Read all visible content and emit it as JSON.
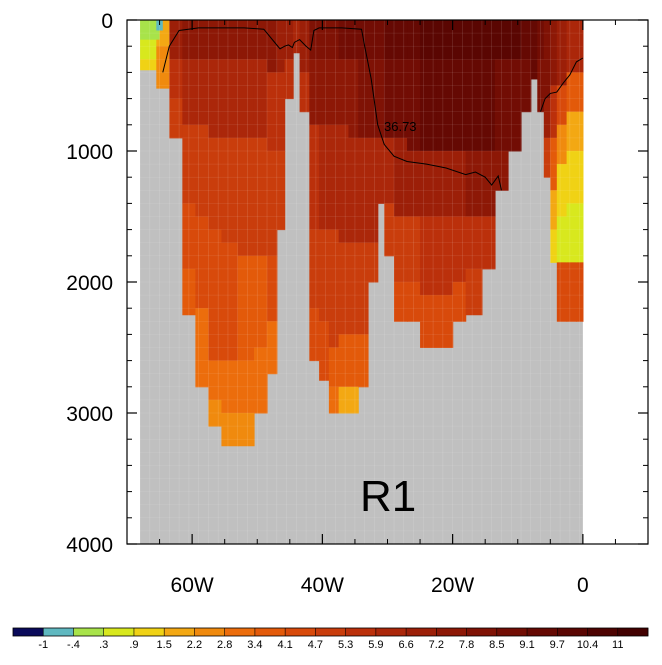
{
  "chart_data": {
    "type": "heatmap",
    "panel_label": "R1",
    "contour_label": "36.73",
    "x_ticks": [
      {
        "value": -60,
        "label": "60W"
      },
      {
        "value": -40,
        "label": "40W"
      },
      {
        "value": -20,
        "label": "20W"
      },
      {
        "value": 0,
        "label": "0"
      }
    ],
    "xlim": [
      -70,
      10
    ],
    "y_ticks": [
      {
        "value": 0,
        "label": "0"
      },
      {
        "value": 1000,
        "label": "1000"
      },
      {
        "value": 2000,
        "label": "2000"
      },
      {
        "value": 3000,
        "label": "3000"
      },
      {
        "value": 4000,
        "label": "4000"
      }
    ],
    "ylim": [
      0,
      4000
    ],
    "y_reversed": true,
    "mask_color": "#c0c0c0",
    "colorbar": {
      "levels": [
        "-1",
        "-.4",
        ".3",
        ".9",
        "1.5",
        "2.2",
        "2.8",
        "3.4",
        "4.1",
        "4.7",
        "5.3",
        "5.9",
        "6.6",
        "7.2",
        "7.8",
        "8.5",
        "9.1",
        "9.7",
        "10.4",
        "11"
      ],
      "colors": [
        "#0a0a5a",
        "#5fb8c0",
        "#a8e34a",
        "#d8e81e",
        "#f0d215",
        "#f3a813",
        "#f08a0e",
        "#ec6d0c",
        "#e35a0a",
        "#d84a0b",
        "#c93d0c",
        "#bb300b",
        "#ab270a",
        "#9c1f08",
        "#8d1806",
        "#7f1205",
        "#720d04",
        "#650903",
        "#5a0602",
        "#4d0301",
        "#420000"
      ]
    },
    "depth_field_note": "",
    "contour_path": [
      [
        -64.5,
        400
      ],
      [
        -63.5,
        200
      ],
      [
        -62,
        80
      ],
      [
        -59,
        60
      ],
      [
        -56,
        60
      ],
      [
        -52,
        60
      ],
      [
        -49,
        70
      ],
      [
        -47.5,
        160
      ],
      [
        -46.5,
        220
      ],
      [
        -45.8,
        200
      ],
      [
        -45.2,
        190
      ],
      [
        -44.6,
        210
      ],
      [
        -44.3,
        170
      ],
      [
        -43.5,
        150
      ],
      [
        -42.5,
        200
      ],
      [
        -41.8,
        230
      ],
      [
        -41.3,
        80
      ],
      [
        -40.5,
        60
      ],
      [
        -37,
        60
      ],
      [
        -34,
        70
      ],
      [
        -33.5,
        200
      ],
      [
        -32.5,
        450
      ],
      [
        -31.5,
        800
      ],
      [
        -30.5,
        950
      ],
      [
        -29,
        1040
      ],
      [
        -27,
        1080
      ],
      [
        -24,
        1100
      ],
      [
        -21,
        1130
      ],
      [
        -18,
        1180
      ],
      [
        -16.5,
        1160
      ],
      [
        -15,
        1200
      ],
      [
        -14,
        1260
      ],
      [
        -13,
        1190
      ],
      [
        -12.5,
        1300
      ]
    ],
    "contour_path_2": [
      [
        -6.5,
        700
      ],
      [
        -5.8,
        600
      ],
      [
        -5,
        560
      ],
      [
        -4,
        550
      ],
      [
        -3,
        480
      ],
      [
        -2,
        420
      ],
      [
        -1,
        320
      ],
      [
        0,
        290
      ]
    ],
    "field": {
      "columns": [
        {
          "x0": -68,
          "x1": -65.5,
          "bottom": 380,
          "top_color": 3,
          "deep": [
            [
              150,
              3
            ],
            [
              300,
              4
            ]
          ]
        },
        {
          "x0": -65.5,
          "x1": -63.5,
          "bottom": 520,
          "top_color": 5,
          "deep": [
            [
              200,
              6
            ]
          ]
        },
        {
          "x0": -63.5,
          "x1": -61.5,
          "bottom": 900,
          "top_color": 13,
          "deep": [
            [
              300,
              11
            ],
            [
              600,
              10
            ]
          ]
        },
        {
          "x0": -61.5,
          "x1": -59.5,
          "bottom": 2250,
          "top_color": 14,
          "deep": [
            [
              300,
              12
            ],
            [
              800,
              10
            ],
            [
              1400,
              9
            ],
            [
              1900,
              8
            ]
          ]
        },
        {
          "x0": -59.5,
          "x1": -57.5,
          "bottom": 2800,
          "top_color": 14,
          "deep": [
            [
              300,
              12
            ],
            [
              800,
              10
            ],
            [
              1500,
              9
            ],
            [
              2200,
              7
            ]
          ]
        },
        {
          "x0": -57.5,
          "x1": -55.5,
          "bottom": 3100,
          "top_color": 14,
          "deep": [
            [
              300,
              12
            ],
            [
              900,
              10
            ],
            [
              1600,
              9
            ],
            [
              2600,
              7
            ],
            [
              2900,
              6
            ]
          ]
        },
        {
          "x0": -55.5,
          "x1": -53,
          "bottom": 3250,
          "top_color": 14,
          "deep": [
            [
              300,
              12
            ],
            [
              900,
              10
            ],
            [
              1700,
              9
            ],
            [
              2600,
              7
            ],
            [
              3000,
              6
            ]
          ]
        },
        {
          "x0": -53,
          "x1": -50.5,
          "bottom": 3250,
          "top_color": 14,
          "deep": [
            [
              300,
              12
            ],
            [
              900,
              10
            ],
            [
              1800,
              8
            ],
            [
              2600,
              7
            ],
            [
              3000,
              6
            ]
          ]
        },
        {
          "x0": -50.5,
          "x1": -48.5,
          "bottom": 3000,
          "top_color": 14,
          "deep": [
            [
              300,
              12
            ],
            [
              900,
              10
            ],
            [
              1800,
              8
            ],
            [
              2500,
              7
            ]
          ]
        },
        {
          "x0": -48.5,
          "x1": -47,
          "bottom": 2700,
          "top_color": 14,
          "deep": [
            [
              400,
              11
            ],
            [
              1000,
              10
            ],
            [
              1800,
              9
            ],
            [
              2300,
              7
            ]
          ]
        },
        {
          "x0": -47,
          "x1": -45.8,
          "bottom": 1600,
          "top_color": 13,
          "deep": [
            [
              400,
              11
            ],
            [
              1000,
              10
            ]
          ]
        },
        {
          "x0": -45.8,
          "x1": -44.5,
          "bottom": 600,
          "top_color": 13,
          "deep": [
            [
              300,
              11
            ]
          ]
        },
        {
          "x0": -44.5,
          "x1": -43.5,
          "bottom": 250,
          "top_color": 12,
          "deep": []
        },
        {
          "x0": -43.5,
          "x1": -42,
          "bottom": 700,
          "top_color": 13,
          "deep": [
            [
              400,
              11
            ]
          ]
        },
        {
          "x0": -42,
          "x1": -40.5,
          "bottom": 2600,
          "top_color": 15,
          "deep": [
            [
              300,
              14
            ],
            [
              800,
              11
            ],
            [
              1600,
              10
            ],
            [
              2200,
              9
            ]
          ]
        },
        {
          "x0": -40.5,
          "x1": -39,
          "bottom": 2750,
          "top_color": 15,
          "deep": [
            [
              300,
              14
            ],
            [
              800,
              12
            ],
            [
              1600,
              10
            ],
            [
              2300,
              9
            ]
          ]
        },
        {
          "x0": -39,
          "x1": -37.5,
          "bottom": 3000,
          "top_color": 15,
          "deep": [
            [
              300,
              14
            ],
            [
              800,
              12
            ],
            [
              1600,
              10
            ],
            [
              2500,
              8
            ],
            [
              2800,
              7
            ]
          ]
        },
        {
          "x0": -37.5,
          "x1": -36,
          "bottom": 3000,
          "top_color": 16,
          "deep": [
            [
              300,
              14
            ],
            [
              800,
              12
            ],
            [
              1700,
              10
            ],
            [
              2400,
              8
            ],
            [
              2800,
              5
            ]
          ]
        },
        {
          "x0": -36,
          "x1": -34.5,
          "bottom": 3000,
          "top_color": 16,
          "deep": [
            [
              300,
              14
            ],
            [
              900,
              12
            ],
            [
              1700,
              10
            ],
            [
              2400,
              8
            ],
            [
              2800,
              5
            ]
          ]
        },
        {
          "x0": -34.5,
          "x1": -33,
          "bottom": 2800,
          "top_color": 16,
          "deep": [
            [
              300,
              15
            ],
            [
              900,
              12
            ],
            [
              1700,
              10
            ],
            [
              2400,
              8
            ]
          ]
        },
        {
          "x0": -33,
          "x1": -31.5,
          "bottom": 2000,
          "top_color": 16,
          "deep": [
            [
              300,
              15
            ],
            [
              900,
              12
            ],
            [
              1700,
              10
            ]
          ]
        },
        {
          "x0": -31.5,
          "x1": -30.5,
          "bottom": 1400,
          "top_color": 16,
          "deep": [
            [
              300,
              15
            ],
            [
              900,
              12
            ]
          ]
        },
        {
          "x0": -30.5,
          "x1": -29,
          "bottom": 1800,
          "top_color": 17,
          "deep": [
            [
              300,
              16
            ],
            [
              900,
              12
            ],
            [
              1400,
              10
            ]
          ]
        },
        {
          "x0": -29,
          "x1": -27,
          "bottom": 2300,
          "top_color": 17,
          "deep": [
            [
              300,
              16
            ],
            [
              900,
              13
            ],
            [
              1500,
              10
            ],
            [
              2000,
              9
            ]
          ]
        },
        {
          "x0": -27,
          "x1": -25,
          "bottom": 2300,
          "top_color": 17,
          "deep": [
            [
              300,
              16
            ],
            [
              1000,
              13
            ],
            [
              1500,
              10
            ],
            [
              2000,
              9
            ]
          ]
        },
        {
          "x0": -25,
          "x1": -22.5,
          "bottom": 2500,
          "top_color": 18,
          "deep": [
            [
              300,
              17
            ],
            [
              1000,
              13
            ],
            [
              1500,
              11
            ],
            [
              2100,
              9
            ]
          ]
        },
        {
          "x0": -22.5,
          "x1": -20,
          "bottom": 2500,
          "top_color": 18,
          "deep": [
            [
              300,
              17
            ],
            [
              1000,
              13
            ],
            [
              1500,
              11
            ],
            [
              2100,
              9
            ]
          ]
        },
        {
          "x0": -20,
          "x1": -18,
          "bottom": 2300,
          "top_color": 18,
          "deep": [
            [
              300,
              17
            ],
            [
              1000,
              13
            ],
            [
              1500,
              11
            ],
            [
              2000,
              9
            ]
          ]
        },
        {
          "x0": -18,
          "x1": -15.5,
          "bottom": 2250,
          "top_color": 18,
          "deep": [
            [
              300,
              17
            ],
            [
              1000,
              14
            ],
            [
              1500,
              11
            ],
            [
              1900,
              10
            ]
          ]
        },
        {
          "x0": -15.5,
          "x1": -13.5,
          "bottom": 1900,
          "top_color": 18,
          "deep": [
            [
              300,
              17
            ],
            [
              1000,
              14
            ],
            [
              1500,
              11
            ]
          ]
        },
        {
          "x0": -13.5,
          "x1": -11.5,
          "bottom": 1300,
          "top_color": 18,
          "deep": [
            [
              300,
              16
            ],
            [
              1000,
              14
            ]
          ]
        },
        {
          "x0": -11.5,
          "x1": -9.5,
          "bottom": 1000,
          "top_color": 18,
          "deep": [
            [
              300,
              16
            ]
          ]
        },
        {
          "x0": -9.5,
          "x1": -8,
          "bottom": 700,
          "top_color": 17,
          "deep": [
            [
              300,
              16
            ]
          ]
        },
        {
          "x0": -8,
          "x1": -7,
          "bottom": 450,
          "top_color": 17,
          "deep": []
        },
        {
          "x0": -7,
          "x1": -6,
          "bottom": 700,
          "top_color": 16,
          "deep": [
            [
              300,
              15
            ]
          ]
        },
        {
          "x0": -6,
          "x1": -5,
          "bottom": 1200,
          "top_color": 15,
          "deep": [
            [
              600,
              13
            ],
            [
              900,
              10
            ]
          ]
        },
        {
          "x0": -5,
          "x1": -4,
          "bottom": 1850,
          "top_color": 14,
          "deep": [
            [
              500,
              11
            ],
            [
              900,
              8
            ],
            [
              1300,
              5
            ],
            [
              1600,
              4
            ]
          ]
        },
        {
          "x0": -4,
          "x1": -2.5,
          "bottom": 2300,
          "top_color": 13,
          "deep": [
            [
              500,
              9
            ],
            [
              800,
              6
            ],
            [
              1100,
              4
            ],
            [
              1500,
              3
            ],
            [
              1850,
              9
            ]
          ]
        },
        {
          "x0": -2.5,
          "x1": -1,
          "bottom": 2300,
          "top_color": 12,
          "deep": [
            [
              400,
              8
            ],
            [
              700,
              5
            ],
            [
              1000,
              4
            ],
            [
              1400,
              3
            ],
            [
              1850,
              9
            ]
          ]
        },
        {
          "x0": -1,
          "x1": 0,
          "bottom": 2300,
          "top_color": 12,
          "deep": [
            [
              400,
              8
            ],
            [
              700,
              5
            ],
            [
              1000,
              4
            ],
            [
              1400,
              3
            ],
            [
              1850,
              9
            ]
          ]
        }
      ],
      "surface_top": [
        {
          "x0": -68,
          "x1": -65,
          "depth": 150,
          "color": 2
        },
        {
          "x0": -65.5,
          "x1": -64.5,
          "depth": 80,
          "color": 1
        }
      ]
    }
  }
}
